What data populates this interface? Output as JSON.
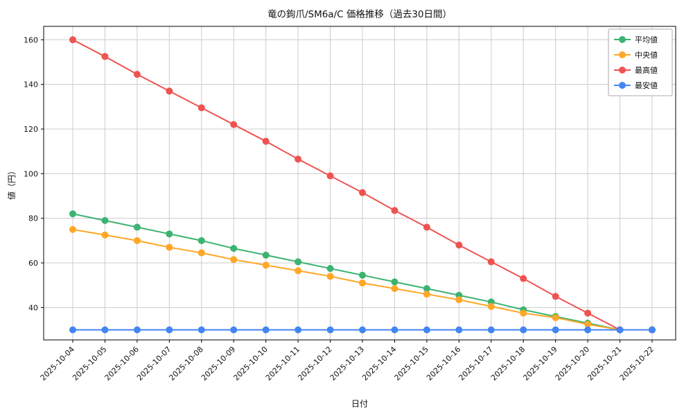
{
  "chart_data": {
    "type": "line",
    "title": "竜の鉤爪/SM6a/C 価格推移（過去30日間）",
    "xlabel": "日付",
    "ylabel": "値（円）",
    "ylim": [
      25.5,
      166
    ],
    "yticks": [
      40,
      60,
      80,
      100,
      120,
      140,
      160
    ],
    "grid": true,
    "legend_position": "upper right",
    "categories": [
      "2025-10-04",
      "2025-10-05",
      "2025-10-06",
      "2025-10-07",
      "2025-10-08",
      "2025-10-09",
      "2025-10-10",
      "2025-10-11",
      "2025-10-12",
      "2025-10-13",
      "2025-10-14",
      "2025-10-15",
      "2025-10-16",
      "2025-10-17",
      "2025-10-18",
      "2025-10-19",
      "2025-10-20",
      "2025-10-21",
      "2025-10-22"
    ],
    "series": [
      {
        "name": "平均値",
        "key": "average",
        "color": "#3cb371",
        "values": [
          82,
          79,
          76,
          73,
          70,
          66.5,
          63.5,
          60.5,
          57.5,
          54.5,
          51.5,
          48.5,
          45.5,
          42.5,
          39,
          36,
          33,
          30,
          30
        ]
      },
      {
        "name": "中央値",
        "key": "median",
        "color": "#ffa726",
        "values": [
          75,
          72.5,
          70,
          67,
          64.5,
          61.5,
          59,
          56.5,
          54,
          51,
          48.5,
          46,
          43.5,
          40.5,
          37.5,
          35.5,
          32.5,
          30,
          30
        ]
      },
      {
        "name": "最高値",
        "key": "max",
        "color": "#ef5350",
        "values": [
          160,
          152.5,
          144.5,
          137,
          129.5,
          122,
          114.5,
          106.5,
          99,
          91.5,
          83.5,
          76,
          68,
          60.5,
          53,
          45,
          37.5,
          30,
          30
        ]
      },
      {
        "name": "最安値",
        "key": "min",
        "color": "#4285f4",
        "values": [
          30,
          30,
          30,
          30,
          30,
          30,
          30,
          30,
          30,
          30,
          30,
          30,
          30,
          30,
          30,
          30,
          30,
          30,
          30
        ]
      }
    ],
    "colors": {
      "grid": "#cccccc",
      "axis": "#000000",
      "legend_border": "#aaaaaa",
      "background": "#ffffff"
    }
  }
}
